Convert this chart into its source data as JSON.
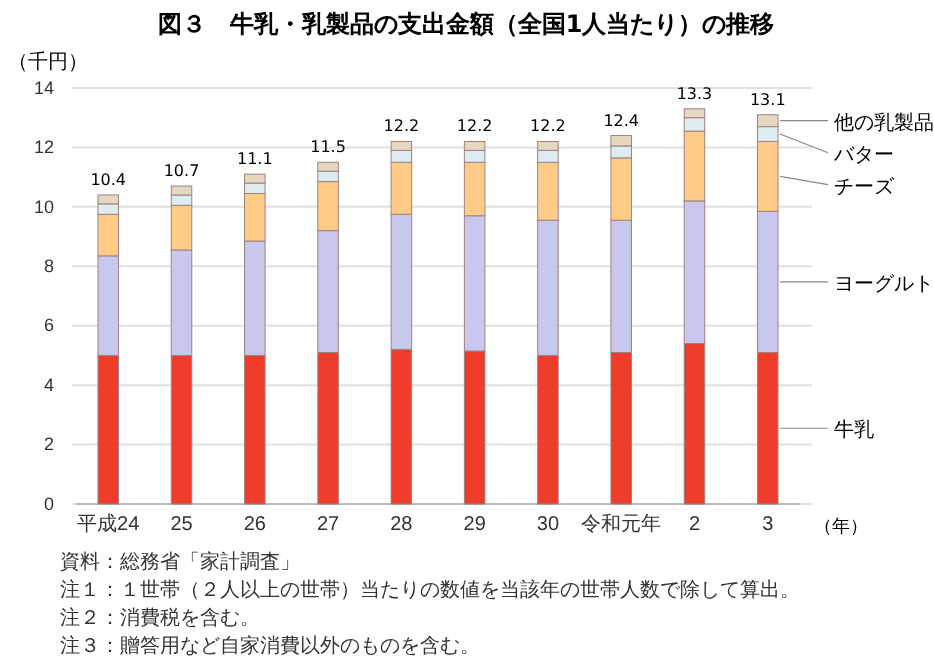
{
  "chart_data": {
    "type": "bar",
    "stacked": true,
    "title": "図３　牛乳・乳製品の支出金額（全国1人当たり）の推移",
    "ylabel": "（千円）",
    "xlabel": "（年）",
    "categories": [
      "平成24",
      "25",
      "26",
      "27",
      "28",
      "29",
      "30",
      "令和元年",
      "2",
      "3"
    ],
    "series": [
      {
        "name": "牛乳",
        "color": "#f03c2a",
        "values": [
          5.0,
          5.0,
          5.0,
          5.1,
          5.2,
          5.15,
          5.0,
          5.1,
          5.4,
          5.1
        ]
      },
      {
        "name": "ヨーグルト",
        "color": "#c8c8ee",
        "values": [
          3.35,
          3.55,
          3.85,
          4.1,
          4.55,
          4.55,
          4.55,
          4.45,
          4.8,
          4.75
        ]
      },
      {
        "name": "チーズ",
        "color": "#ffcc88",
        "values": [
          1.4,
          1.5,
          1.6,
          1.65,
          1.75,
          1.8,
          1.95,
          2.1,
          2.35,
          2.35
        ]
      },
      {
        "name": "バター",
        "color": "#dcecf0",
        "values": [
          0.35,
          0.35,
          0.35,
          0.35,
          0.4,
          0.4,
          0.4,
          0.4,
          0.45,
          0.5
        ]
      },
      {
        "name": "他の乳製品",
        "color": "#e6d8c0",
        "values": [
          0.3,
          0.3,
          0.3,
          0.3,
          0.3,
          0.3,
          0.3,
          0.35,
          0.3,
          0.4
        ]
      }
    ],
    "totals": [
      "10.4",
      "10.7",
      "11.1",
      "11.5",
      "12.2",
      "12.2",
      "12.2",
      "12.4",
      "13.3",
      "13.1"
    ],
    "ylim": [
      0,
      14
    ],
    "yticks": [
      0,
      2,
      4,
      6,
      8,
      10,
      12,
      14
    ],
    "grid": "y",
    "legend": false,
    "annotations": [
      "資料：総務省「家計調査」",
      "注１：１世帯（２人以上の世帯）当たりの数値を当該年の世帯人数で除して算出。",
      "注２：消費税を含む。",
      "注３：贈答用など自家消費以外のものを含む。"
    ]
  }
}
